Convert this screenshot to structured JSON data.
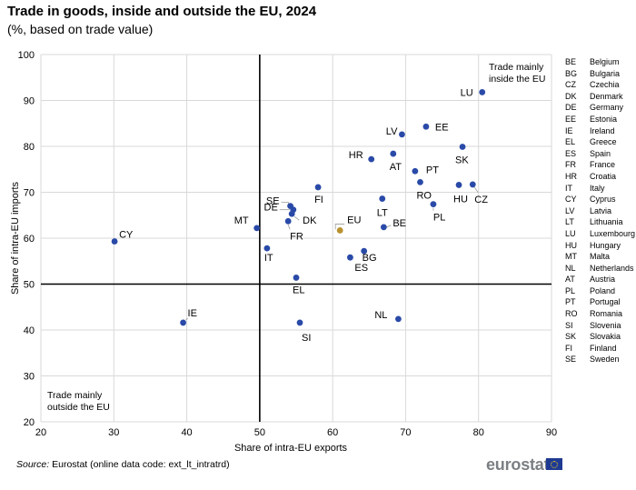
{
  "header": {
    "title": "Trade in goods, inside and outside the EU, 2024",
    "subtitle": "(%, based on trade value)"
  },
  "chart_data": {
    "type": "scatter",
    "xlabel": "Share of intra-EU exports",
    "ylabel": "Share of intra-EU imports",
    "xlim": [
      20,
      90
    ],
    "ylim": [
      20,
      100
    ],
    "xticks": [
      20,
      30,
      40,
      50,
      60,
      70,
      80,
      90
    ],
    "yticks": [
      20,
      30,
      40,
      50,
      60,
      70,
      80,
      90,
      100
    ],
    "reference_lines": {
      "x": 50,
      "y": 50
    },
    "grid": true,
    "annotations": {
      "top_right": [
        "Trade mainly",
        "inside the EU"
      ],
      "bottom_left": [
        "Trade mainly",
        "outside the EU"
      ]
    },
    "colors": {
      "country": "#2a4aa8",
      "eu": "#b9922f"
    },
    "points": [
      {
        "label": "LU",
        "x": 80.5,
        "y": 91.8
      },
      {
        "label": "EE",
        "x": 72.8,
        "y": 84.3
      },
      {
        "label": "LV",
        "x": 69.5,
        "y": 82.6
      },
      {
        "label": "SK",
        "x": 77.8,
        "y": 79.9
      },
      {
        "label": "AT",
        "x": 68.3,
        "y": 78.4
      },
      {
        "label": "HR",
        "x": 65.3,
        "y": 77.2
      },
      {
        "label": "PT",
        "x": 71.3,
        "y": 74.6
      },
      {
        "label": "RO",
        "x": 72.0,
        "y": 72.2
      },
      {
        "label": "HU",
        "x": 77.3,
        "y": 71.6
      },
      {
        "label": "CZ",
        "x": 79.2,
        "y": 71.7
      },
      {
        "label": "FI",
        "x": 58.0,
        "y": 71.1
      },
      {
        "label": "LT",
        "x": 66.8,
        "y": 68.6
      },
      {
        "label": "PL",
        "x": 73.8,
        "y": 67.4
      },
      {
        "label": "SE",
        "x": 54.2,
        "y": 67.0
      },
      {
        "label": "DE",
        "x": 54.6,
        "y": 66.2
      },
      {
        "label": "DK",
        "x": 54.4,
        "y": 65.3
      },
      {
        "label": "FR",
        "x": 53.9,
        "y": 63.7
      },
      {
        "label": "BE",
        "x": 67.0,
        "y": 62.4
      },
      {
        "label": "MT",
        "x": 49.6,
        "y": 62.2
      },
      {
        "label": "EU",
        "x": 61.0,
        "y": 61.7,
        "highlight": true
      },
      {
        "label": "CY",
        "x": 30.1,
        "y": 59.3
      },
      {
        "label": "IT",
        "x": 51.0,
        "y": 57.8
      },
      {
        "label": "BG",
        "x": 64.3,
        "y": 57.2
      },
      {
        "label": "ES",
        "x": 62.4,
        "y": 55.8
      },
      {
        "label": "EL",
        "x": 55.0,
        "y": 51.4
      },
      {
        "label": "IE",
        "x": 39.5,
        "y": 41.6
      },
      {
        "label": "SI",
        "x": 55.5,
        "y": 41.6
      },
      {
        "label": "NL",
        "x": 69.0,
        "y": 42.4
      }
    ]
  },
  "legend": [
    {
      "code": "BE",
      "name": "Belgium"
    },
    {
      "code": "BG",
      "name": "Bulgaria"
    },
    {
      "code": "CZ",
      "name": "Czechia"
    },
    {
      "code": "DK",
      "name": "Denmark"
    },
    {
      "code": "DE",
      "name": "Germany"
    },
    {
      "code": "EE",
      "name": "Estonia"
    },
    {
      "code": "IE",
      "name": "Ireland"
    },
    {
      "code": "EL",
      "name": "Greece"
    },
    {
      "code": "ES",
      "name": "Spain"
    },
    {
      "code": "FR",
      "name": "France"
    },
    {
      "code": "HR",
      "name": "Croatia"
    },
    {
      "code": "IT",
      "name": "Italy"
    },
    {
      "code": "CY",
      "name": "Cyprus"
    },
    {
      "code": "LV",
      "name": "Latvia"
    },
    {
      "code": "LT",
      "name": "Lithuania"
    },
    {
      "code": "LU",
      "name": "Luxembourg"
    },
    {
      "code": "HU",
      "name": "Hungary"
    },
    {
      "code": "MT",
      "name": "Malta"
    },
    {
      "code": "NL",
      "name": "Netherlands"
    },
    {
      "code": "AT",
      "name": "Austria"
    },
    {
      "code": "PL",
      "name": "Poland"
    },
    {
      "code": "PT",
      "name": "Portugal"
    },
    {
      "code": "RO",
      "name": "Romania"
    },
    {
      "code": "SI",
      "name": "Slovenia"
    },
    {
      "code": "SK",
      "name": "Slovakia"
    },
    {
      "code": "FI",
      "name": "Finland"
    },
    {
      "code": "SE",
      "name": "Sweden"
    }
  ],
  "footer": {
    "source_label": "Source:",
    "source_text": " Eurostat (online data code: ext_lt_intratrd)",
    "logo_text": "eurostat"
  }
}
